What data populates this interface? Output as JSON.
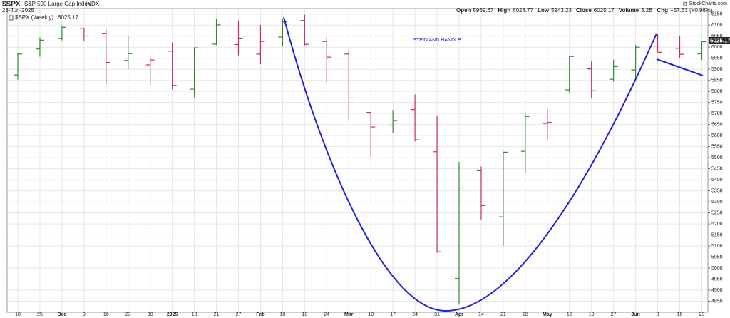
{
  "header": {
    "symbol": "$SPX",
    "name": "S&P 500 Large Cap Index",
    "exchange": "INDX",
    "date": "23-Jun-2025",
    "credit": "@ StockCharts.com",
    "quote": [
      {
        "label": "Open",
        "value": "5969.67"
      },
      {
        "label": "High",
        "value": "6028.77"
      },
      {
        "label": "Low",
        "value": "5943.23"
      },
      {
        "label": "Close",
        "value": "6025.17"
      },
      {
        "label": "Volume",
        "value": "3.2B"
      },
      {
        "label": "Chg",
        "value": "+57.33 (+0.96%)"
      }
    ],
    "last_price": "6025.17"
  },
  "chart_data": {
    "type": "ohlc",
    "annotation": "STEIN AND HANDLE",
    "categories": [
      "18",
      "25",
      "Dec",
      "9",
      "16",
      "23",
      "30",
      "2025",
      "13",
      "21",
      "27",
      "Feb",
      "10",
      "18",
      "24",
      "Mar",
      "10",
      "17",
      "24",
      "31",
      "Apr",
      "14",
      "21",
      "28",
      "May",
      "12",
      "19",
      "27",
      "Jun",
      "9",
      "16",
      "23"
    ],
    "series": [
      {
        "name": "$SPX (Weekly)",
        "up_color": "#2f8a2f",
        "down_color": "#c72c66",
        "open": [
          5874,
          5992,
          6040,
          6084,
          6063,
          5940,
          5920,
          5982,
          5810,
          6014,
          6012,
          5969,
          6046,
          6121,
          6026,
          5969,
          5705,
          5647,
          5718,
          5527,
          4953,
          5441,
          5232,
          5529,
          5655,
          5807,
          5902,
          5855,
          5897,
          6005,
          5995,
          5970
        ],
        "high": [
          5972,
          6044,
          6099,
          6088,
          6085,
          6050,
          5949,
          6021,
          6000,
          6129,
          6120,
          6101,
          6127,
          6147,
          6044,
          5987,
          5705,
          5716,
          5786,
          5691,
          5481,
          5460,
          5528,
          5700,
          5720,
          5959,
          5938,
          5944,
          6010,
          6059,
          6050,
          6029
        ],
        "low": [
          5853,
          5957,
          6031,
          6026,
          5832,
          5900,
          5829,
          5809,
          5773,
          6010,
          5963,
          5923,
          6003,
          6008,
          5837,
          5666,
          5505,
          5610,
          5574,
          5069,
          4835,
          5220,
          5101,
          5433,
          5578,
          5794,
          5768,
          5844,
          5861,
          5978,
          5952,
          5943
        ],
        "close": [
          5969,
          6032,
          6090,
          6051,
          5931,
          5971,
          5942,
          5827,
          5997,
          6101,
          6041,
          6026,
          6115,
          6013,
          5955,
          5770,
          5639,
          5668,
          5581,
          5074,
          5363,
          5283,
          5525,
          5687,
          5660,
          5958,
          5803,
          5912,
          6000,
          5977,
          5968,
          6025
        ]
      }
    ],
    "ylim": [
      4800,
      6175
    ],
    "yticks": [
      4850,
      4900,
      4950,
      5000,
      5050,
      5100,
      5150,
      5200,
      5250,
      5300,
      5350,
      5400,
      5450,
      5500,
      5550,
      5600,
      5650,
      5700,
      5750,
      5800,
      5850,
      5900,
      5950,
      6000,
      6050,
      6100,
      6150
    ],
    "grid": true
  }
}
